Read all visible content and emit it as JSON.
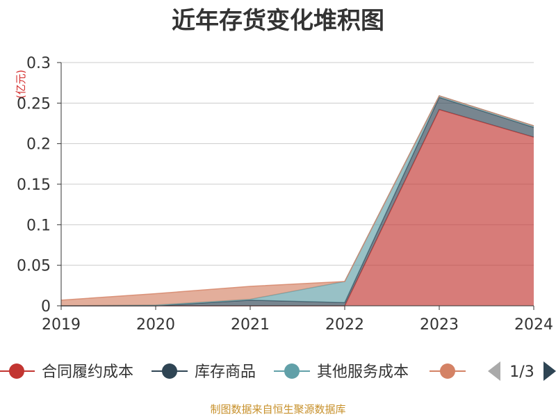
{
  "chart_data": {
    "type": "area",
    "stacked": true,
    "title": "近年存货变化堆积图",
    "y_unit": "(亿元)",
    "categories": [
      "2019",
      "2020",
      "2021",
      "2022",
      "2023",
      "2024"
    ],
    "ylim": [
      0,
      0.3
    ],
    "y_ticks": [
      "0",
      "0.05",
      "0.1",
      "0.15",
      "0.2",
      "0.25",
      "0.3"
    ],
    "grid": true,
    "series": [
      {
        "name": "合同履约成本",
        "color": "#c23531",
        "values": [
          0,
          0,
          0,
          0,
          0.242,
          0.208
        ]
      },
      {
        "name": "库存商品",
        "color": "#2f4554",
        "values": [
          0,
          0,
          0.007,
          0.004,
          0.015,
          0.012
        ]
      },
      {
        "name": "其他服务成本",
        "color": "#61a0a8",
        "values": [
          0,
          0.001,
          0.001,
          0.026,
          0.002,
          0.002
        ]
      },
      {
        "name": "",
        "color": "#d48265",
        "values": [
          0.007,
          0.014,
          0.016,
          0,
          0,
          0
        ]
      }
    ]
  },
  "legend": {
    "items": [
      {
        "label": "合同履约成本",
        "color": "#c23531"
      },
      {
        "label": "库存商品",
        "color": "#2f4554"
      },
      {
        "label": "其他服务成本",
        "color": "#61a0a8"
      },
      {
        "label": "",
        "color": "#d48265"
      }
    ],
    "page_indicator": "1/3",
    "nav_color": "#2f4554",
    "nav_disabled_color": "#aaaaaa"
  },
  "source": "制图数据来自恒生聚源数据库"
}
